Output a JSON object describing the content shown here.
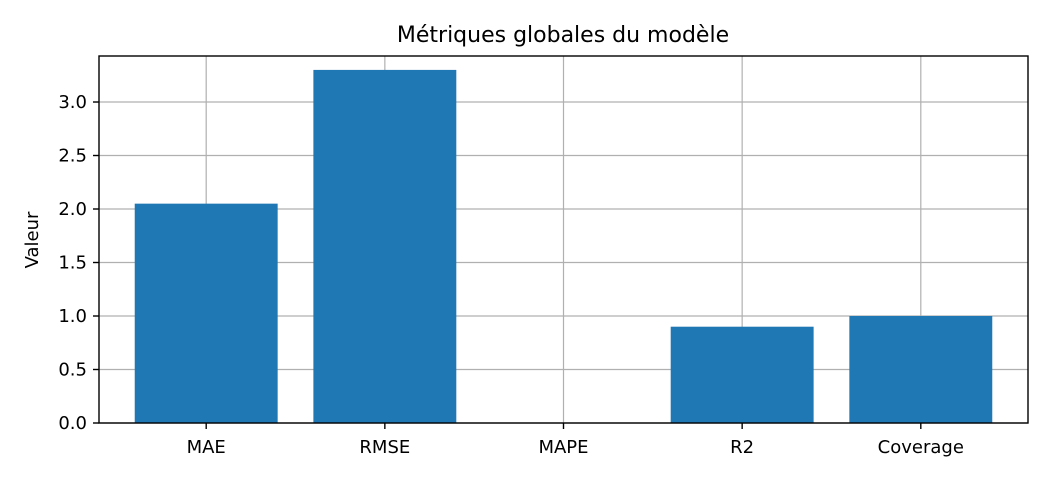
{
  "chart_data": {
    "type": "bar",
    "title": "Métriques globales du modèle",
    "xlabel": "",
    "ylabel": "Valeur",
    "categories": [
      "MAE",
      "RMSE",
      "MAPE",
      "R2",
      "Coverage"
    ],
    "values": [
      2.05,
      3.3,
      0.0,
      0.9,
      1.0
    ],
    "ylim": [
      0,
      3.43
    ],
    "yticks": [
      0.0,
      0.5,
      1.0,
      1.5,
      2.0,
      2.5,
      3.0
    ],
    "ytick_labels": [
      "0.0",
      "0.5",
      "1.0",
      "1.5",
      "2.0",
      "2.5",
      "3.0"
    ],
    "grid": true,
    "bar_color": "#1f77b4"
  }
}
